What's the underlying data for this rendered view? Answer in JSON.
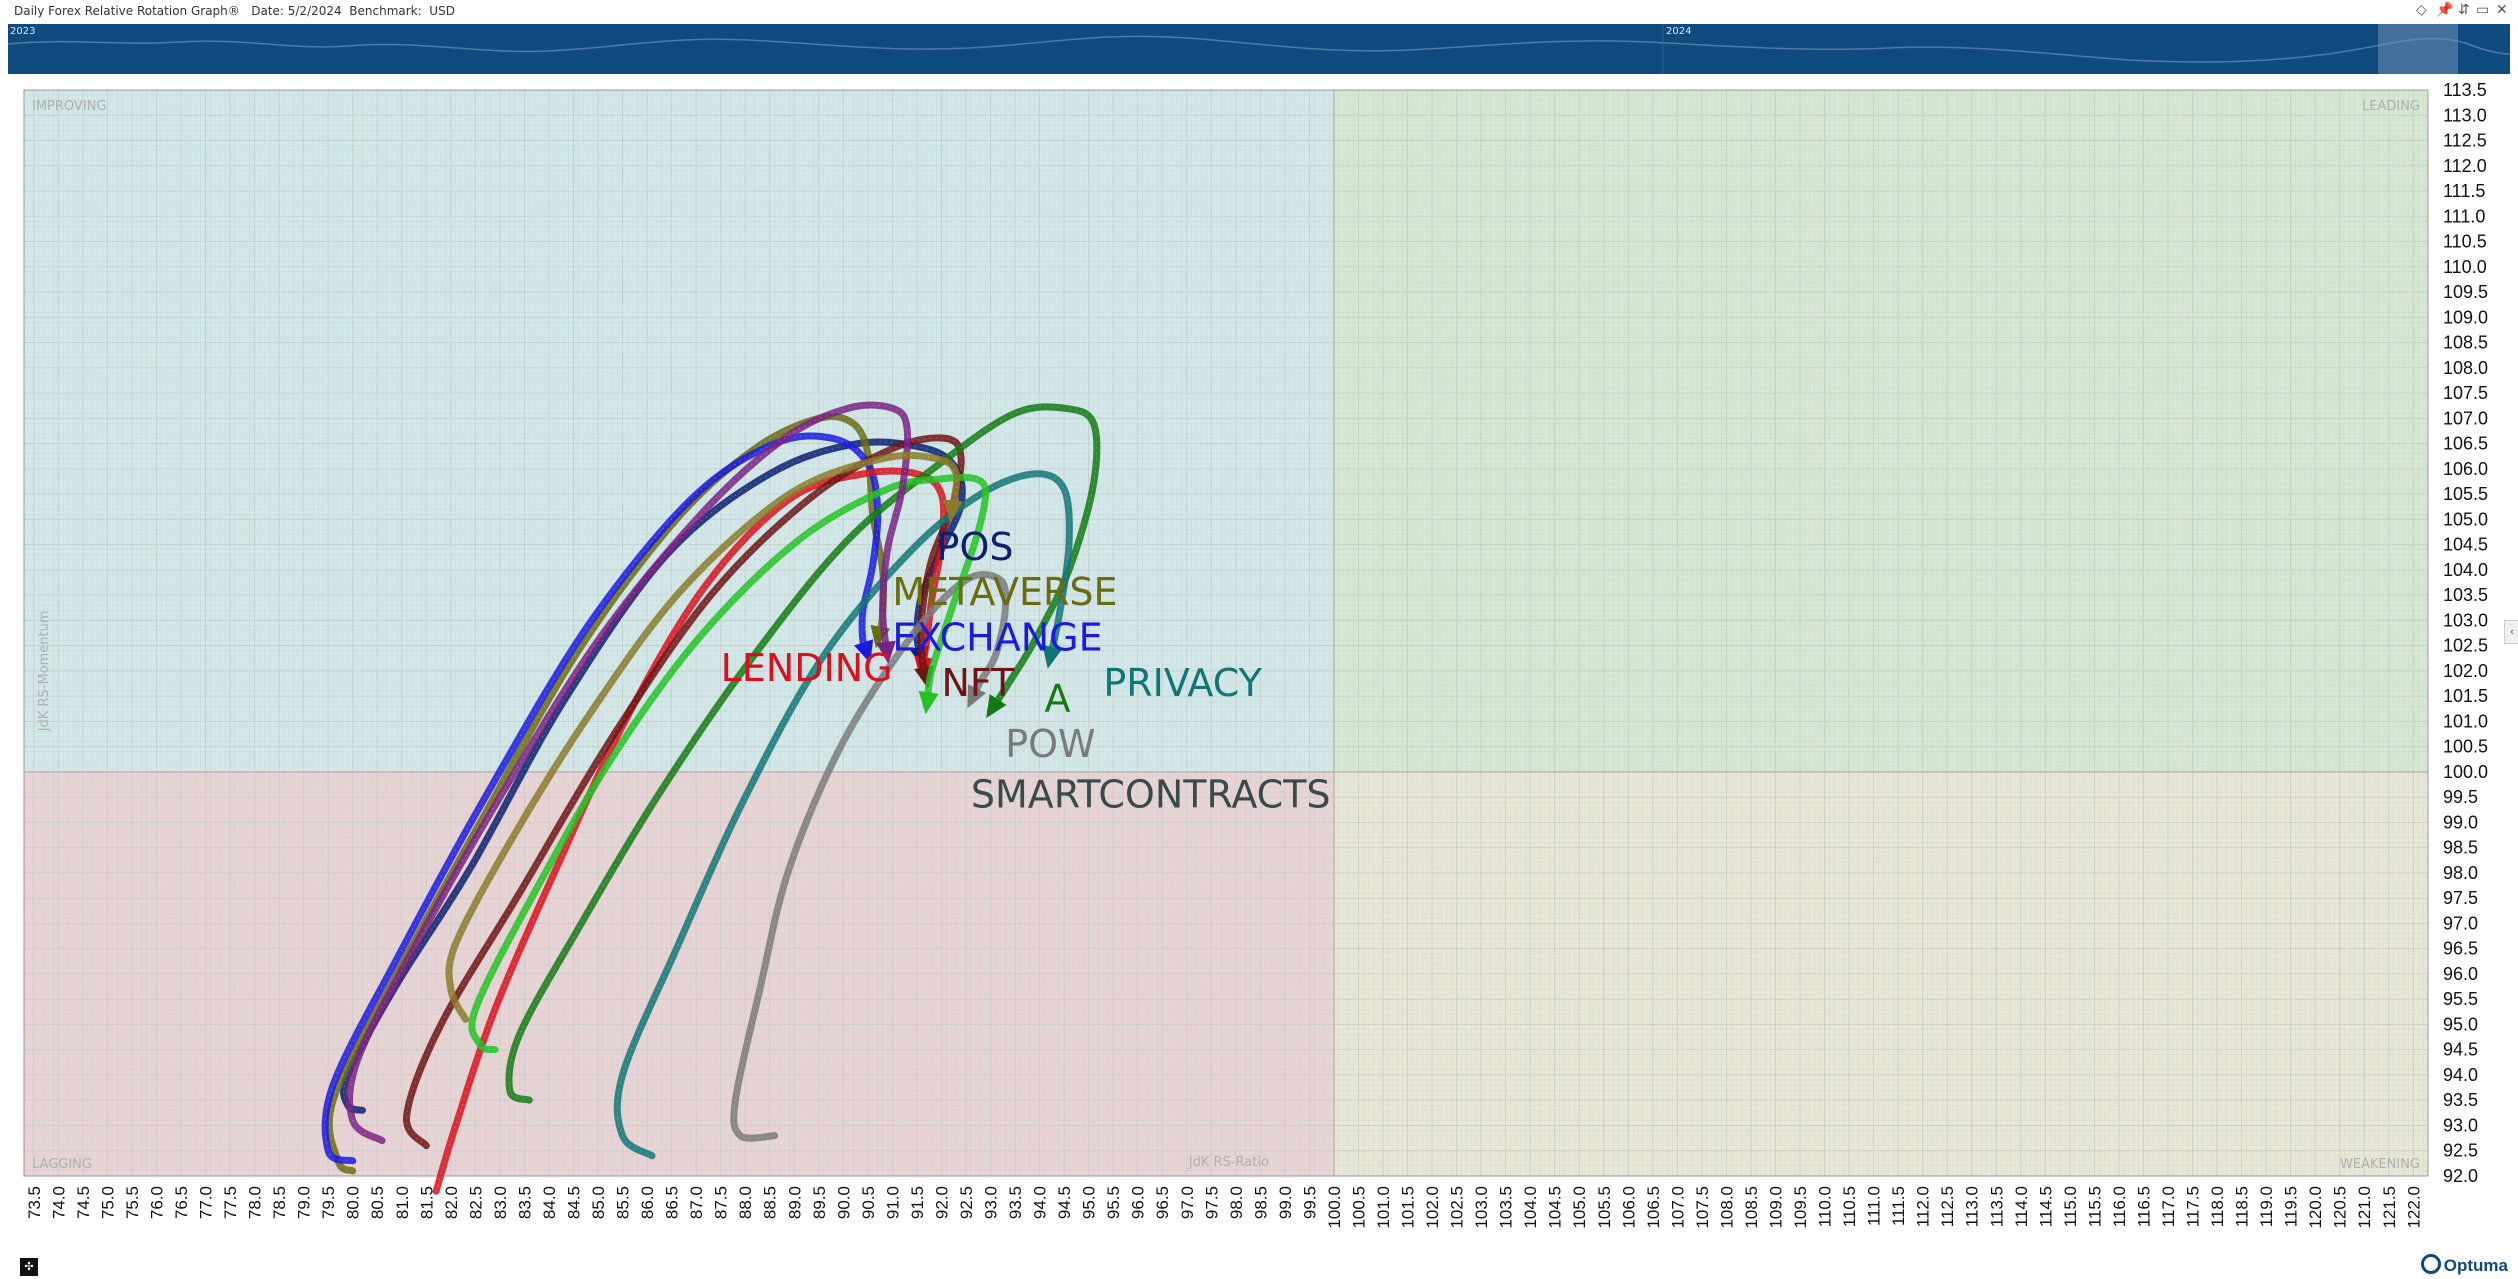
{
  "window": {
    "title": "Daily Forex Relative Rotation Graph®   Date: 5/2/2024  Benchmark:  USD",
    "buttons": [
      "◇",
      "📌",
      "⇵",
      "▭",
      "✕"
    ]
  },
  "navigator": {
    "labels": [
      "2023",
      "2024"
    ],
    "colors": {
      "bg": "#0f4a7e",
      "line": "#4f7aa3",
      "highlight": "#6e8fb0"
    }
  },
  "brand": "Optuma",
  "colors": {
    "improving": "#d2e7e8",
    "leading": "#d6e7d2",
    "lagging": "#e8d4d4",
    "weakening": "#e8e6d4",
    "grid": "#c5cccc",
    "quadrant_label": "#b0b0b0"
  },
  "chart_data": {
    "type": "scatter",
    "subtype": "relative-rotation-graph",
    "xlabel": "JdK RS-Ratio",
    "ylabel": "JdK RS-Momentum",
    "xlim": [
      73.3,
      122.3
    ],
    "ylim": [
      92.0,
      113.5
    ],
    "x_ticks": [
      73.5,
      74.0,
      74.5,
      75.0,
      75.5,
      76.0,
      76.5,
      77.0,
      77.5,
      78.0,
      78.5,
      79.0,
      79.5,
      80.0,
      80.5,
      81.0,
      81.5,
      82.0,
      82.5,
      83.0,
      83.5,
      84.0,
      84.5,
      85.0,
      85.5,
      86.0,
      86.5,
      87.0,
      87.5,
      88.0,
      88.5,
      89.0,
      89.5,
      90.0,
      90.5,
      91.0,
      91.5,
      92.0,
      92.5,
      93.0,
      93.5,
      94.0,
      94.5,
      95.0,
      95.5,
      96.0,
      96.5,
      97.0,
      97.5,
      98.0,
      98.5,
      99.0,
      99.5,
      100.0,
      100.5,
      101.0,
      101.5,
      102.0,
      102.5,
      103.0,
      103.5,
      104.0,
      104.5,
      105.0,
      105.5,
      106.0,
      106.5,
      107.0,
      107.5,
      108.0,
      108.5,
      109.0,
      109.5,
      110.0,
      110.5,
      111.0,
      111.5,
      112.0,
      112.5,
      113.0,
      113.5,
      114.0,
      114.5,
      115.0,
      115.5,
      116.0,
      116.5,
      117.0,
      117.5,
      118.0,
      118.5,
      119.0,
      119.5,
      120.0,
      120.5,
      121.0,
      121.5,
      122.0
    ],
    "y_ticks": [
      92.0,
      92.5,
      93.0,
      93.5,
      94.0,
      94.5,
      95.0,
      95.5,
      96.0,
      96.5,
      97.0,
      97.5,
      98.0,
      98.5,
      99.0,
      99.5,
      100.0,
      100.5,
      101.0,
      101.5,
      102.0,
      102.5,
      103.0,
      103.5,
      104.0,
      104.5,
      105.0,
      105.5,
      106.0,
      106.5,
      107.0,
      107.5,
      108.0,
      108.5,
      109.0,
      109.5,
      110.0,
      110.5,
      111.0,
      111.5,
      112.0,
      112.5,
      113.0,
      113.5
    ],
    "grid": true,
    "quadrants": {
      "top_left": "IMPROVING",
      "top_right": "LEADING",
      "bottom_left": "LAGGING",
      "bottom_right": "WEAKENING"
    },
    "series": [
      {
        "name": "POS",
        "color": "#0b1e70",
        "label_at": [
          91.9,
          104.2
        ],
        "points": [
          [
            80.2,
            93.3
          ],
          [
            79.9,
            93.4
          ],
          [
            79.9,
            94.0
          ],
          [
            80.9,
            95.8
          ],
          [
            82.4,
            98.1
          ],
          [
            84.3,
            101.4
          ],
          [
            86.4,
            104.3
          ],
          [
            88.5,
            105.9
          ],
          [
            90.3,
            106.5
          ],
          [
            91.7,
            106.4
          ],
          [
            92.3,
            106.0
          ],
          [
            92.4,
            105.3
          ],
          [
            92.0,
            104.4
          ],
          [
            91.6,
            103.5
          ],
          [
            91.5,
            102.7
          ],
          [
            91.6,
            102.2
          ]
        ]
      },
      {
        "name": "METAVERSE",
        "color": "#6b6b10",
        "label_at": [
          91.0,
          103.3
        ],
        "points": [
          [
            80.0,
            92.1
          ],
          [
            79.7,
            92.3
          ],
          [
            79.6,
            93.5
          ],
          [
            80.9,
            96.0
          ],
          [
            82.6,
            99.0
          ],
          [
            84.6,
            102.4
          ],
          [
            86.6,
            105.0
          ],
          [
            88.2,
            106.4
          ],
          [
            89.5,
            107.0
          ],
          [
            90.2,
            106.9
          ],
          [
            90.5,
            106.3
          ],
          [
            90.6,
            105.1
          ],
          [
            90.8,
            104.0
          ],
          [
            90.8,
            103.1
          ],
          [
            90.7,
            102.6
          ]
        ]
      },
      {
        "name": "EXCHANGE",
        "color": "#1a1adf",
        "label_at": [
          91.0,
          102.4
        ],
        "points": [
          [
            80.0,
            92.3
          ],
          [
            79.5,
            92.5
          ],
          [
            79.6,
            93.8
          ],
          [
            80.9,
            96.3
          ],
          [
            82.7,
            99.5
          ],
          [
            84.8,
            102.9
          ],
          [
            86.9,
            105.4
          ],
          [
            88.6,
            106.5
          ],
          [
            89.8,
            106.6
          ],
          [
            90.5,
            106.1
          ],
          [
            90.7,
            105.2
          ],
          [
            90.6,
            104.1
          ],
          [
            90.4,
            103.2
          ],
          [
            90.4,
            102.6
          ],
          [
            90.5,
            102.3
          ]
        ]
      },
      {
        "name": "LENDING",
        "color": "#d9101c",
        "label_at": [
          87.5,
          101.8
        ],
        "points": [
          [
            81.7,
            91.7
          ],
          [
            82.1,
            93.0
          ],
          [
            82.9,
            95.3
          ],
          [
            84.2,
            98.2
          ],
          [
            85.6,
            101.1
          ],
          [
            87.2,
            103.7
          ],
          [
            88.9,
            105.4
          ],
          [
            90.4,
            105.9
          ],
          [
            91.5,
            105.9
          ],
          [
            92.0,
            105.5
          ],
          [
            92.0,
            104.5
          ],
          [
            91.8,
            103.4
          ],
          [
            91.7,
            102.6
          ],
          [
            91.6,
            102.0
          ]
        ]
      },
      {
        "name": "NFT",
        "color": "#6e1414",
        "label_at": [
          92.0,
          101.5
        ],
        "points": [
          [
            81.5,
            92.6
          ],
          [
            81.1,
            93.2
          ],
          [
            81.8,
            95.0
          ],
          [
            83.4,
            97.6
          ],
          [
            85.3,
            100.7
          ],
          [
            87.3,
            103.5
          ],
          [
            89.3,
            105.4
          ],
          [
            91.0,
            106.4
          ],
          [
            92.1,
            106.6
          ],
          [
            92.4,
            106.2
          ],
          [
            92.2,
            105.2
          ],
          [
            91.8,
            104.2
          ],
          [
            91.6,
            103.1
          ],
          [
            91.6,
            102.3
          ],
          [
            91.7,
            101.8
          ]
        ]
      },
      {
        "name": "A",
        "color": "#137a13",
        "label_at": [
          94.1,
          101.2
        ],
        "points": [
          [
            83.6,
            93.5
          ],
          [
            83.2,
            93.7
          ],
          [
            83.4,
            94.8
          ],
          [
            84.6,
            96.9
          ],
          [
            86.2,
            99.5
          ],
          [
            88.1,
            102.2
          ],
          [
            90.1,
            104.6
          ],
          [
            92.1,
            106.2
          ],
          [
            93.5,
            107.1
          ],
          [
            94.5,
            107.2
          ],
          [
            95.1,
            106.9
          ],
          [
            95.1,
            105.7
          ],
          [
            94.6,
            104.0
          ],
          [
            93.9,
            102.6
          ],
          [
            93.4,
            101.8
          ],
          [
            93.0,
            101.2
          ]
        ]
      },
      {
        "name": "PRIVACY",
        "color": "#127575",
        "label_at": [
          95.3,
          101.5
        ],
        "points": [
          [
            86.1,
            92.4
          ],
          [
            85.5,
            92.8
          ],
          [
            85.5,
            94.0
          ],
          [
            86.6,
            96.5
          ],
          [
            88.0,
            99.5
          ],
          [
            89.6,
            102.3
          ],
          [
            91.4,
            104.4
          ],
          [
            92.8,
            105.5
          ],
          [
            93.9,
            105.9
          ],
          [
            94.5,
            105.6
          ],
          [
            94.6,
            104.5
          ],
          [
            94.4,
            103.1
          ],
          [
            94.2,
            102.2
          ]
        ]
      },
      {
        "name": "POW",
        "color": "#7a7a7a",
        "label_at": [
          93.3,
          100.3
        ],
        "points": [
          [
            88.6,
            92.8
          ],
          [
            87.9,
            92.8
          ],
          [
            87.8,
            93.5
          ],
          [
            88.3,
            95.7
          ],
          [
            88.9,
            98.1
          ],
          [
            90.0,
            100.6
          ],
          [
            91.4,
            102.7
          ],
          [
            92.5,
            103.8
          ],
          [
            93.2,
            103.8
          ],
          [
            93.3,
            103.2
          ],
          [
            93.1,
            102.3
          ],
          [
            92.8,
            101.8
          ],
          [
            92.6,
            101.4
          ]
        ]
      },
      {
        "name": "SMARTCONTRACTS",
        "color": "#3a4a4a",
        "label_at": [
          92.6,
          99.3
        ],
        "points": []
      },
      {
        "name": "",
        "color": "#22c322",
        "points": [
          [
            82.9,
            94.5
          ],
          [
            82.6,
            94.6
          ],
          [
            82.5,
            95.3
          ],
          [
            83.7,
            97.6
          ],
          [
            85.3,
            100.3
          ],
          [
            87.1,
            102.7
          ],
          [
            89.1,
            104.6
          ],
          [
            90.9,
            105.6
          ],
          [
            92.0,
            105.8
          ],
          [
            92.7,
            105.8
          ],
          [
            92.9,
            105.5
          ],
          [
            92.7,
            104.6
          ],
          [
            92.2,
            103.2
          ],
          [
            91.8,
            102.0
          ],
          [
            91.7,
            101.3
          ]
        ]
      },
      {
        "name": "",
        "color": "#7a2282",
        "points": [
          [
            80.6,
            92.7
          ],
          [
            80.0,
            93.1
          ],
          [
            80.1,
            94.3
          ],
          [
            81.3,
            96.6
          ],
          [
            83.0,
            99.5
          ],
          [
            85.0,
            102.6
          ],
          [
            87.1,
            105.1
          ],
          [
            88.8,
            106.6
          ],
          [
            90.1,
            107.2
          ],
          [
            91.0,
            107.2
          ],
          [
            91.3,
            106.8
          ],
          [
            91.2,
            105.6
          ],
          [
            90.9,
            104.4
          ],
          [
            90.8,
            103.2
          ],
          [
            90.9,
            102.3
          ]
        ]
      },
      {
        "name": "",
        "color": "#8a7a2a",
        "points": [
          [
            82.3,
            95.1
          ],
          [
            82.0,
            95.7
          ],
          [
            82.1,
            96.6
          ],
          [
            83.2,
            98.6
          ],
          [
            84.8,
            101.1
          ],
          [
            86.7,
            103.6
          ],
          [
            88.9,
            105.5
          ],
          [
            90.8,
            106.2
          ],
          [
            91.9,
            106.2
          ],
          [
            92.3,
            105.9
          ],
          [
            92.2,
            105.1
          ]
        ]
      }
    ]
  }
}
